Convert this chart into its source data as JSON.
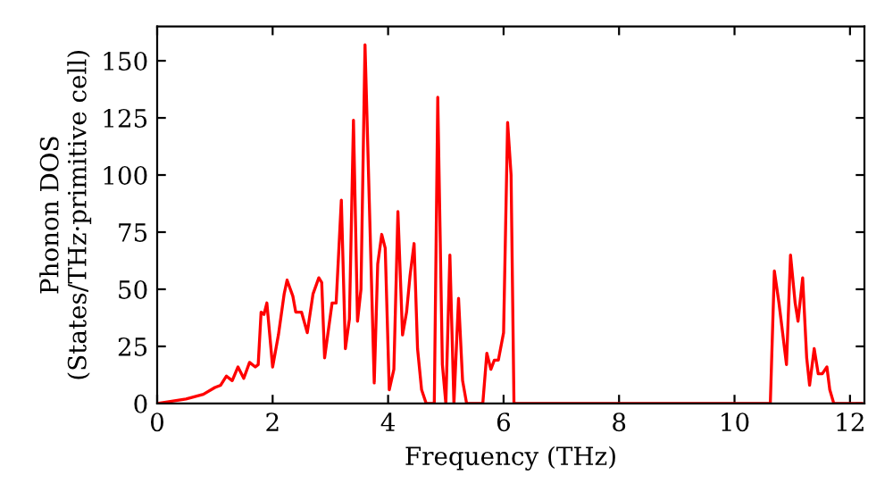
{
  "chart_data": {
    "type": "line",
    "xlabel": "Frequency (THz)",
    "ylabel": "Phonon DOS\n(States/THz·primitive cell)",
    "series": [
      {
        "color": "#ff0000",
        "x": [
          0,
          0.5,
          0.8,
          1.0,
          1.1,
          1.2,
          1.3,
          1.4,
          1.5,
          1.6,
          1.7,
          1.75,
          1.8,
          1.85,
          1.9,
          2.0,
          2.1,
          2.2,
          2.25,
          2.35,
          2.4,
          2.5,
          2.6,
          2.7,
          2.8,
          2.85,
          2.9,
          3.03,
          3.1,
          3.19,
          3.26,
          3.33,
          3.4,
          3.47,
          3.53,
          3.6,
          3.76,
          3.82,
          3.89,
          3.95,
          4.02,
          4.1,
          4.17,
          4.25,
          4.32,
          4.38,
          4.45,
          4.51,
          4.58,
          4.66,
          4.8,
          4.86,
          4.94,
          5.0,
          5.07,
          5.14,
          5.22,
          5.29,
          5.36,
          5.64,
          5.71,
          5.78,
          5.84,
          5.91,
          6.0,
          6.07,
          6.13,
          6.18,
          10.62,
          10.69,
          10.77,
          10.9,
          10.97,
          11.05,
          11.1,
          11.18,
          11.25,
          11.3,
          11.38,
          11.45,
          11.52,
          11.6,
          11.65,
          11.72,
          12.2
        ],
        "values": [
          0,
          2,
          4,
          7,
          8,
          12,
          10,
          16,
          11,
          18,
          16,
          17,
          40,
          39,
          44,
          16,
          30,
          48,
          54,
          47,
          40,
          40,
          31,
          48,
          55,
          53,
          20,
          44,
          44,
          89,
          24,
          37,
          124,
          36,
          50,
          157,
          9,
          61,
          74,
          68,
          6,
          15,
          84,
          30,
          40,
          56,
          70,
          24,
          6,
          0,
          0,
          134,
          17,
          0,
          65,
          0,
          46,
          10,
          0,
          0,
          22,
          15,
          19,
          19,
          31,
          123,
          100,
          0,
          0,
          58,
          44,
          17,
          65,
          44,
          36,
          55,
          20,
          8,
          24,
          13,
          13,
          16,
          6,
          0,
          0
        ]
      }
    ],
    "xlim": [
      0,
      12.25
    ],
    "xticks": [
      0,
      2,
      4,
      6,
      8,
      10,
      12
    ],
    "ylim": [
      0,
      165
    ],
    "yticks": [
      0,
      25,
      50,
      75,
      100,
      125,
      150
    ],
    "grid": false,
    "legend": false
  }
}
